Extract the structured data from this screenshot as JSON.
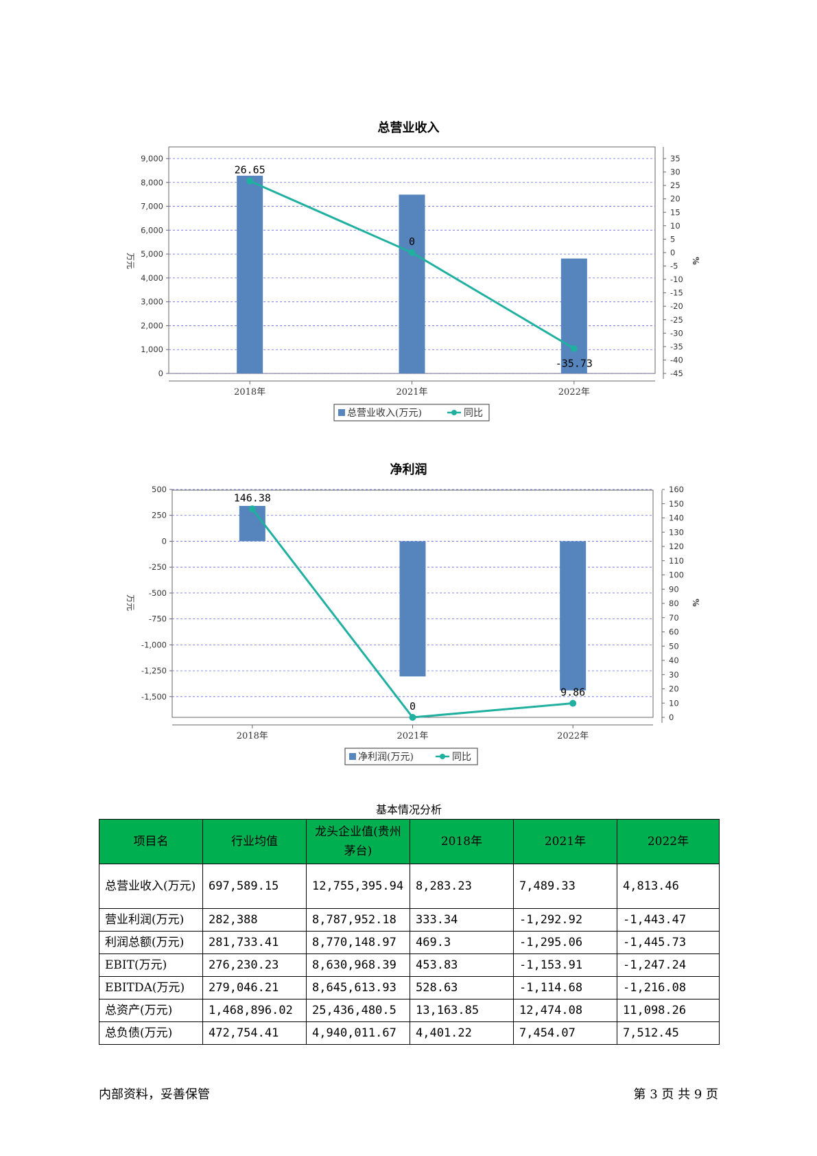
{
  "chart_data": [
    {
      "type": "bar",
      "title": "总营业收入",
      "categories": [
        "2018年",
        "2021年",
        "2022年"
      ],
      "series": [
        {
          "name": "总营业收入(万元)",
          "kind": "bar",
          "axis": "left",
          "values": [
            8283.23,
            7489.33,
            4813.46
          ]
        },
        {
          "name": "同比",
          "kind": "line",
          "axis": "right",
          "values": [
            26.65,
            0,
            -35.73
          ],
          "labels": [
            "26.65",
            "0",
            "-35.73"
          ]
        }
      ],
      "ylabel": "万元",
      "y2label": "%",
      "ylim": [
        0,
        9000
      ],
      "y2lim": [
        -45,
        35
      ],
      "yticks": [
        "0",
        "1,000",
        "2,000",
        "3,000",
        "4,000",
        "5,000",
        "6,000",
        "7,000",
        "8,000",
        "9,000"
      ],
      "y2ticks": [
        "35",
        "30",
        "25",
        "20",
        "15",
        "10",
        "5",
        "0",
        "-5",
        "-10",
        "-15",
        "-20",
        "-25",
        "-30",
        "-35",
        "-40",
        "-45"
      ],
      "grid": true,
      "legend": "bottom-center"
    },
    {
      "type": "bar",
      "title": "净利润",
      "categories": [
        "2018年",
        "2021年",
        "2022年"
      ],
      "series": [
        {
          "name": "净利润(万元)",
          "kind": "bar",
          "axis": "left",
          "values": [
            341.0,
            -1305.0,
            -1440.0
          ]
        },
        {
          "name": "同比",
          "kind": "line",
          "axis": "right",
          "values": [
            146.38,
            0,
            9.86
          ],
          "labels": [
            "146.38",
            "0",
            "9.86"
          ]
        }
      ],
      "ylabel": "万元",
      "y2label": "%",
      "ylim": [
        -1700,
        500
      ],
      "y2lim": [
        0,
        160
      ],
      "yticks": [
        "500",
        "250",
        "0",
        "-250",
        "-500",
        "-750",
        "-1,000",
        "-1,250",
        "-1,500"
      ],
      "y2ticks": [
        "160",
        "150",
        "140",
        "130",
        "120",
        "110",
        "100",
        "90",
        "80",
        "70",
        "60",
        "50",
        "40",
        "30",
        "20",
        "10",
        "0"
      ],
      "grid": true,
      "legend": "bottom-center"
    }
  ],
  "colors": {
    "bar": "#5585bc",
    "line": "#1fb0a0",
    "grid": "#6666ee",
    "header_bg": "#00b050"
  },
  "table": {
    "caption": "基本情况分析",
    "headers": [
      "项目名",
      "行业均值",
      "龙头企业值(贵州茅台)",
      "2018年",
      "2021年",
      "2022年"
    ],
    "rows": [
      [
        "总营业收入(万元)",
        "697,589.15",
        "12,755,395.94",
        "8,283.23",
        "7,489.33",
        "4,813.46"
      ],
      [
        "营业利润(万元)",
        "282,388",
        "8,787,952.18",
        "333.34",
        "-1,292.92",
        "-1,443.47"
      ],
      [
        "利润总额(万元)",
        "281,733.41",
        "8,770,148.97",
        "469.3",
        "-1,295.06",
        "-1,445.73"
      ],
      [
        "EBIT(万元)",
        "276,230.23",
        "8,630,968.39",
        "453.83",
        "-1,153.91",
        "-1,247.24"
      ],
      [
        "EBITDA(万元)",
        "279,046.21",
        "8,645,613.93",
        "528.63",
        "-1,114.68",
        "-1,216.08"
      ],
      [
        "总资产(万元)",
        "1,468,896.02",
        "25,436,480.5",
        "13,163.85",
        "12,474.08",
        "11,098.26"
      ],
      [
        "总负债(万元)",
        "472,754.41",
        "4,940,011.67",
        "4,401.22",
        "7,454.07",
        "7,512.45"
      ]
    ]
  },
  "footer": {
    "left": "内部资料，妥善保管",
    "right": "第 3 页  共 9 页"
  }
}
